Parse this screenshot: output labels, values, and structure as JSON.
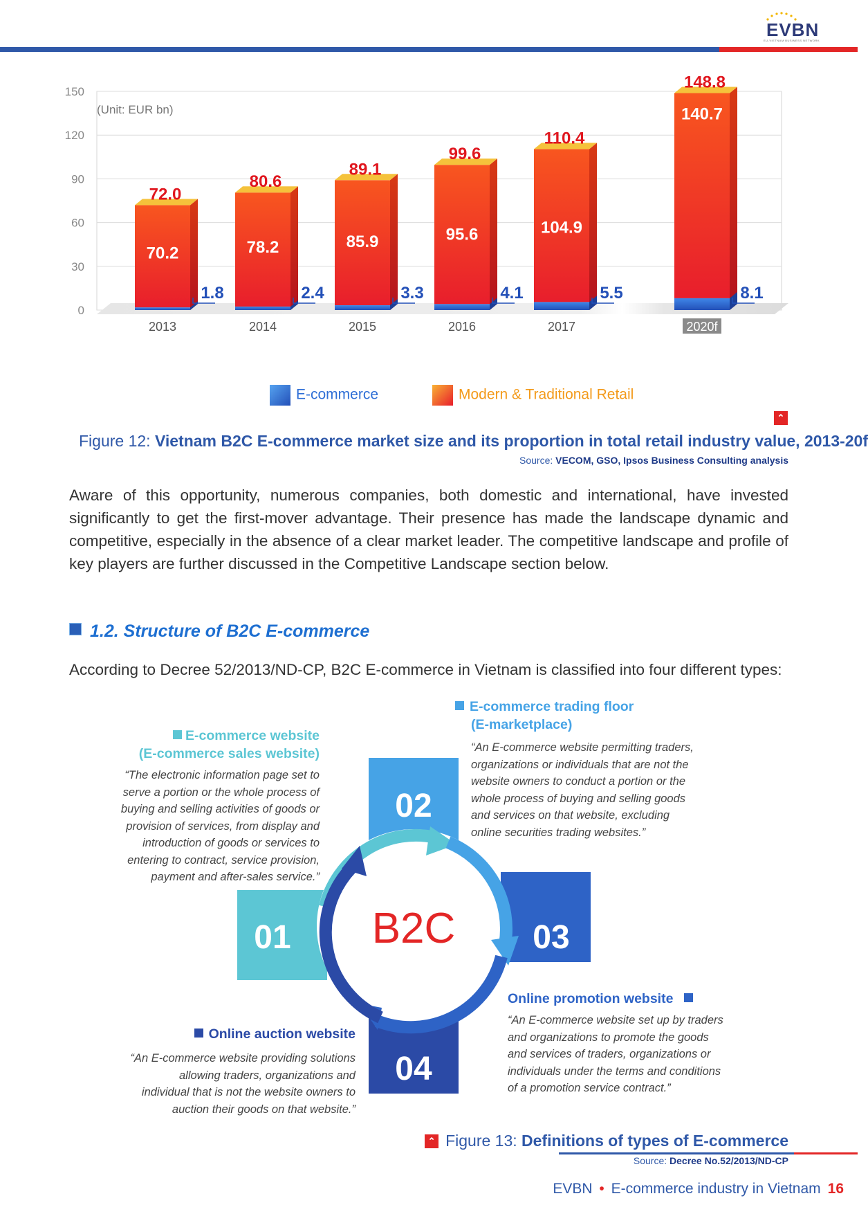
{
  "header": {
    "logo_text": "EVBN",
    "logo_subtitle": "EU-VIETNAM BUSINESS NETWORK"
  },
  "chart_data": {
    "type": "bar",
    "unit_label": "(Unit: EUR bn)",
    "categories": [
      "2013",
      "2014",
      "2015",
      "2016",
      "2017",
      "2020f"
    ],
    "series": [
      {
        "name": "Modern & Traditional Retail",
        "values": [
          70.2,
          78.2,
          85.9,
          95.6,
          104.9,
          140.7
        ],
        "color": "#f03a22"
      },
      {
        "name": "E-commerce",
        "values": [
          1.8,
          2.4,
          3.3,
          4.1,
          5.5,
          8.1
        ],
        "color": "#2f6fd6"
      }
    ],
    "totals": [
      72.0,
      80.6,
      89.1,
      99.6,
      110.4,
      148.8
    ],
    "value_labels_retail": [
      "70.2",
      "78.2",
      "85.9",
      "95.6",
      "104.9",
      "140.7"
    ],
    "value_labels_ecom": [
      "1.8",
      "2.4",
      "3.3",
      "4.1",
      "5.5",
      "8.1"
    ],
    "total_labels": [
      "72.0",
      "80.6",
      "89.1",
      "99.6",
      "110.4",
      "148.8"
    ],
    "yticks": [
      "0",
      "30",
      "60",
      "90",
      "120",
      "150"
    ],
    "ylim": [
      0,
      150
    ],
    "grid": true,
    "legend_position": "bottom"
  },
  "figure12": {
    "prefix": "Figure 12: ",
    "title": "Vietnam B2C E-commerce market size and its proportion in total retail industry value, 2013-20f",
    "source_prefix": "Source: ",
    "source": "VECOM, GSO, Ipsos Business Consulting analysis"
  },
  "body_paragraph": "Aware of this opportunity, numerous companies, both domestic and international, have invested significantly to get the first-mover advantage. Their presence has made the landscape dynamic and competitive, especially in the absence of a clear market leader. The competitive landscape and profile of key players are further discussed in the Competitive Landscape section below.",
  "section": {
    "heading": "1.2. Structure of B2C E-commerce"
  },
  "intro": "According to Decree 52/2013/ND-CP, B2C E-commerce in Vietnam is classified into four different types:",
  "diagram": {
    "center": "B2C",
    "numbers": [
      "01",
      "02",
      "03",
      "04"
    ],
    "types": [
      {
        "title_line1": "E-commerce website",
        "title_line2": "(E-commerce sales website)",
        "body": [
          "“The electronic information page set to",
          "serve a portion or the whole process of",
          "buying and selling activities of goods or",
          "provision of services, from display and",
          "introduction of goods or services to",
          "entering to contract, service provision,",
          "payment and after-sales service.”"
        ],
        "color": "#5cc6d4"
      },
      {
        "title_line1": "E-commerce trading floor",
        "title_line2": "(E-marketplace)",
        "body": [
          "“An E-commerce website permitting traders,",
          "organizations or individuals that are not the",
          "website owners to conduct a portion or the",
          "whole process of buying and selling goods",
          "and services on that website, excluding",
          "online securities trading websites.”"
        ],
        "color": "#46a3e6"
      },
      {
        "title_line1": "Online promotion website",
        "body": [
          "“An E-commerce website set up by traders",
          "and organizations to promote the goods",
          "and services of traders, organizations or",
          "individuals under the terms and conditions",
          "of a promotion service contract.”"
        ],
        "color": "#2e63c6"
      },
      {
        "title_line1": "Online auction website",
        "body": [
          "“An E-commerce website providing solutions",
          "allowing traders, organizations and",
          "individual that is not the website owners to",
          "auction their goods on that website.”"
        ],
        "color": "#2b4aa6"
      }
    ]
  },
  "figure13": {
    "prefix": "Figure 13: ",
    "title": "Definitions of types of E-commerce",
    "source_prefix": "Source: ",
    "source": "Decree No.52/2013/ND-CP"
  },
  "footer": {
    "left": "EVBN",
    "bullet": "•",
    "title": "E-commerce industry in Vietnam",
    "page": "16"
  }
}
